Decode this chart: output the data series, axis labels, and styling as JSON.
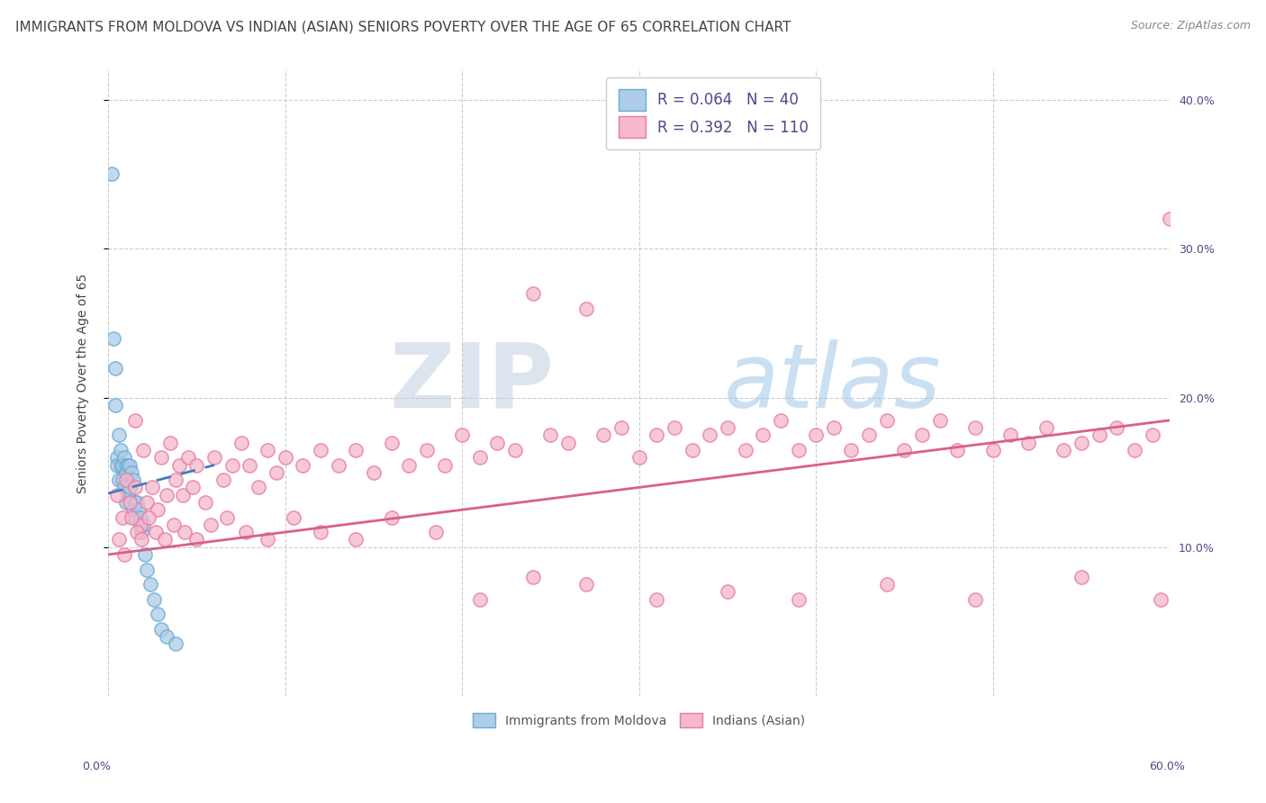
{
  "title": "IMMIGRANTS FROM MOLDOVA VS INDIAN (ASIAN) SENIORS POVERTY OVER THE AGE OF 65 CORRELATION CHART",
  "source": "Source: ZipAtlas.com",
  "ylabel": "Seniors Poverty Over the Age of 65",
  "legend_label1": "R = 0.064   N = 40",
  "legend_label2": "R = 0.392   N = 110",
  "legend_bottom1": "Immigrants from Moldova",
  "legend_bottom2": "Indians (Asian)",
  "watermark1": "ZIP",
  "watermark2": "atlas",
  "blue_scatter_face": "#aecde8",
  "blue_scatter_edge": "#6aaad4",
  "pink_scatter_face": "#f5b8cc",
  "pink_scatter_edge": "#e87aa0",
  "blue_line_color": "#3a7fc1",
  "pink_line_color": "#d95f8a",
  "grid_color": "#cccccc",
  "text_color": "#4a4a8a",
  "title_color": "#444444",
  "source_color": "#888888",
  "ylabel_color": "#444444",
  "right_tick_color": "#4a4a8a",
  "xlim": [
    0.0,
    0.6
  ],
  "ylim": [
    0.0,
    0.42
  ],
  "ytick_vals": [
    0.1,
    0.2,
    0.3,
    0.4
  ],
  "moldova_x": [
    0.002,
    0.003,
    0.004,
    0.004,
    0.005,
    0.005,
    0.006,
    0.006,
    0.007,
    0.007,
    0.008,
    0.008,
    0.009,
    0.009,
    0.01,
    0.01,
    0.01,
    0.011,
    0.011,
    0.012,
    0.012,
    0.013,
    0.013,
    0.014,
    0.014,
    0.015,
    0.015,
    0.016,
    0.017,
    0.018,
    0.019,
    0.02,
    0.021,
    0.022,
    0.024,
    0.026,
    0.028,
    0.03,
    0.033,
    0.038
  ],
  "moldova_y": [
    0.35,
    0.24,
    0.22,
    0.195,
    0.16,
    0.155,
    0.175,
    0.145,
    0.165,
    0.155,
    0.155,
    0.145,
    0.16,
    0.14,
    0.155,
    0.15,
    0.13,
    0.155,
    0.135,
    0.155,
    0.14,
    0.15,
    0.13,
    0.145,
    0.125,
    0.13,
    0.12,
    0.13,
    0.125,
    0.12,
    0.11,
    0.115,
    0.095,
    0.085,
    0.075,
    0.065,
    0.055,
    0.045,
    0.04,
    0.035
  ],
  "indian_x": [
    0.005,
    0.008,
    0.01,
    0.012,
    0.015,
    0.018,
    0.02,
    0.022,
    0.025,
    0.028,
    0.03,
    0.033,
    0.035,
    0.038,
    0.04,
    0.042,
    0.045,
    0.048,
    0.05,
    0.055,
    0.06,
    0.065,
    0.07,
    0.075,
    0.08,
    0.085,
    0.09,
    0.095,
    0.1,
    0.11,
    0.12,
    0.13,
    0.14,
    0.15,
    0.16,
    0.17,
    0.18,
    0.19,
    0.2,
    0.21,
    0.22,
    0.23,
    0.24,
    0.25,
    0.26,
    0.27,
    0.28,
    0.29,
    0.3,
    0.31,
    0.32,
    0.33,
    0.34,
    0.35,
    0.36,
    0.37,
    0.38,
    0.39,
    0.4,
    0.41,
    0.42,
    0.43,
    0.44,
    0.45,
    0.46,
    0.47,
    0.48,
    0.49,
    0.5,
    0.51,
    0.52,
    0.53,
    0.54,
    0.55,
    0.56,
    0.57,
    0.58,
    0.59,
    0.6,
    0.006,
    0.009,
    0.013,
    0.016,
    0.019,
    0.023,
    0.027,
    0.032,
    0.037,
    0.043,
    0.05,
    0.058,
    0.067,
    0.078,
    0.09,
    0.105,
    0.12,
    0.14,
    0.16,
    0.185,
    0.21,
    0.24,
    0.27,
    0.31,
    0.35,
    0.39,
    0.44,
    0.49,
    0.55,
    0.595,
    0.015
  ],
  "indian_y": [
    0.135,
    0.12,
    0.145,
    0.13,
    0.14,
    0.115,
    0.165,
    0.13,
    0.14,
    0.125,
    0.16,
    0.135,
    0.17,
    0.145,
    0.155,
    0.135,
    0.16,
    0.14,
    0.155,
    0.13,
    0.16,
    0.145,
    0.155,
    0.17,
    0.155,
    0.14,
    0.165,
    0.15,
    0.16,
    0.155,
    0.165,
    0.155,
    0.165,
    0.15,
    0.17,
    0.155,
    0.165,
    0.155,
    0.175,
    0.16,
    0.17,
    0.165,
    0.27,
    0.175,
    0.17,
    0.26,
    0.175,
    0.18,
    0.16,
    0.175,
    0.18,
    0.165,
    0.175,
    0.18,
    0.165,
    0.175,
    0.185,
    0.165,
    0.175,
    0.18,
    0.165,
    0.175,
    0.185,
    0.165,
    0.175,
    0.185,
    0.165,
    0.18,
    0.165,
    0.175,
    0.17,
    0.18,
    0.165,
    0.17,
    0.175,
    0.18,
    0.165,
    0.175,
    0.32,
    0.105,
    0.095,
    0.12,
    0.11,
    0.105,
    0.12,
    0.11,
    0.105,
    0.115,
    0.11,
    0.105,
    0.115,
    0.12,
    0.11,
    0.105,
    0.12,
    0.11,
    0.105,
    0.12,
    0.11,
    0.065,
    0.08,
    0.075,
    0.065,
    0.07,
    0.065,
    0.075,
    0.065,
    0.08,
    0.065,
    0.185
  ],
  "moldova_line_x": [
    0.0,
    0.06
  ],
  "moldova_line_y": [
    0.136,
    0.155
  ],
  "indian_line_x": [
    0.0,
    0.6
  ],
  "indian_line_y": [
    0.095,
    0.185
  ],
  "title_fontsize": 11,
  "source_fontsize": 9,
  "tick_fontsize": 9,
  "ylabel_fontsize": 10,
  "legend_fontsize": 12
}
